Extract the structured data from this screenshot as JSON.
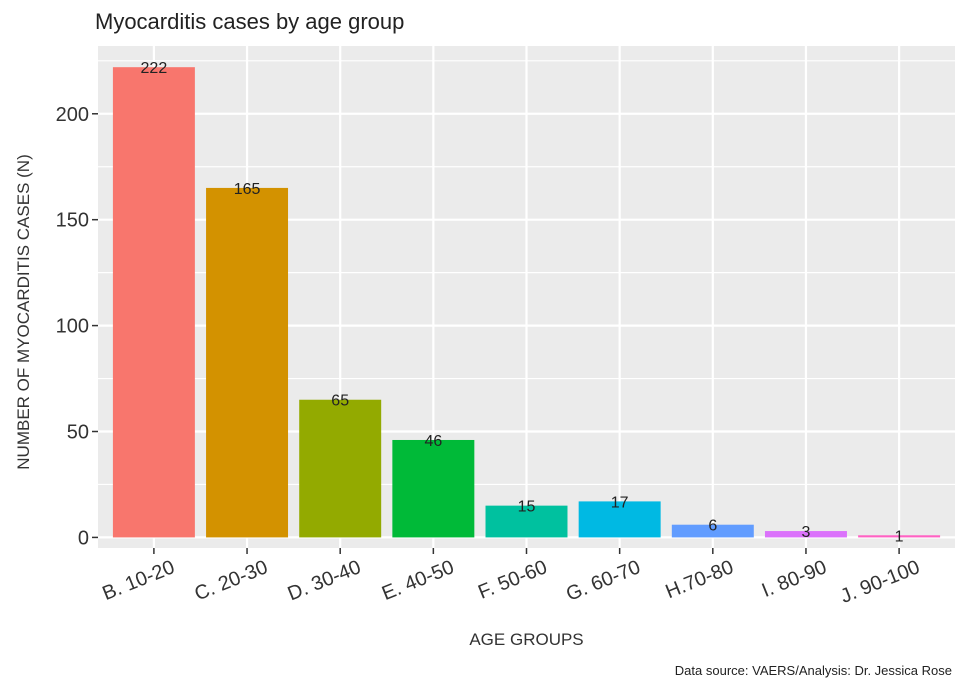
{
  "chart_data": {
    "type": "bar",
    "title": "Myocarditis cases by age group",
    "xlabel": "AGE GROUPS",
    "ylabel": "NUMBER OF MYOCARDITIS CASES (N)",
    "caption": "Data source: VAERS/Analysis: Dr. Jessica Rose",
    "categories": [
      "B. 10-20",
      "C. 20-30",
      "D. 30-40",
      "E. 40-50",
      "F. 50-60",
      "G. 60-70",
      "H.70-80",
      "I. 80-90",
      "J. 90-100"
    ],
    "values": [
      222,
      165,
      65,
      46,
      15,
      17,
      6,
      3,
      1
    ],
    "data_labels": [
      "222",
      "165",
      "65",
      "46",
      "15",
      "17",
      "6",
      "3",
      "1"
    ],
    "colors": [
      "#F8766D",
      "#D39200",
      "#93AA00",
      "#00BA38",
      "#00C19F",
      "#00B9E3",
      "#619CFF",
      "#DB72FB",
      "#FF61C3"
    ],
    "yticks": [
      0,
      50,
      100,
      150,
      200
    ],
    "ytick_labels": [
      "0",
      "50",
      "100",
      "150",
      "200"
    ],
    "ylim": [
      -5,
      232
    ],
    "grid": true,
    "legend": "none",
    "panel_background": "#EBEBEB",
    "grid_color": "#FFFFFF"
  }
}
